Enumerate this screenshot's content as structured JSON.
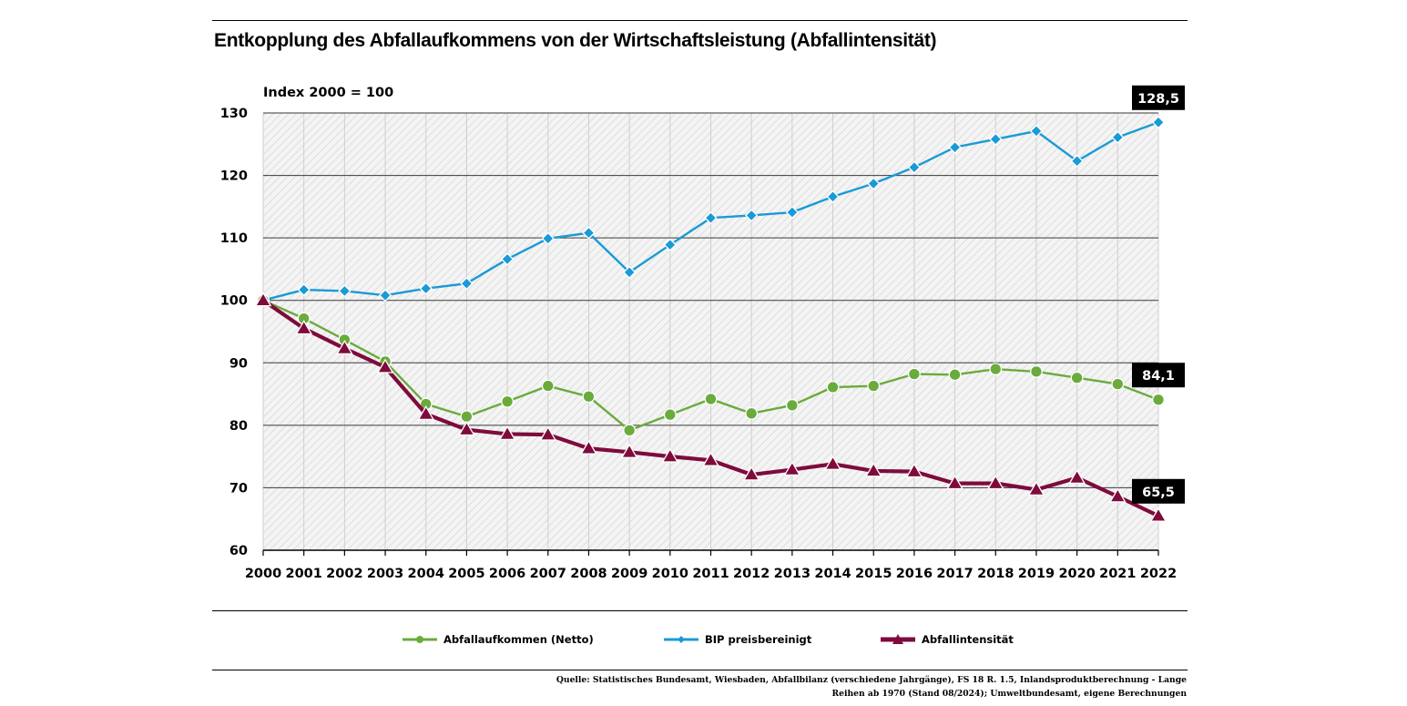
{
  "title": "Entkopplung des Abfallaufkommens von der Wirtschaftsleistung (Abfallintensität)",
  "source": {
    "line1": "Quelle: Statistisches Bundesamt, Wiesbaden, Abfallbilanz (verschiedene Jahrgänge), FS 18 R. 1.5, Inlandsproduktberechnung - Lange",
    "line2": "Reihen ab 1970 (Stand 08/2024); Umweltbundesamt, eigene Berechnungen"
  },
  "chart_data": {
    "type": "line",
    "ylabel": "Index 2000 = 100",
    "ylim": [
      60,
      130
    ],
    "yticks": [
      60,
      70,
      80,
      90,
      100,
      110,
      120,
      130
    ],
    "grid": true,
    "legend_position": "bottom",
    "x": [
      "2000",
      "2001",
      "2002",
      "2003",
      "2004",
      "2005",
      "2006",
      "2007",
      "2008",
      "2009",
      "2010",
      "2011",
      "2012",
      "2013",
      "2014",
      "2015",
      "2016",
      "2017",
      "2018",
      "2019",
      "2020",
      "2021",
      "2022"
    ],
    "series": [
      {
        "name": "Abfallaufkommen  (Netto)",
        "color": "#6aab3c",
        "marker": "circle",
        "values": [
          100,
          97.1,
          93.7,
          90.2,
          83.4,
          81.4,
          83.8,
          86.3,
          84.6,
          79.2,
          81.7,
          84.2,
          81.9,
          83.2,
          86.1,
          86.3,
          88.2,
          88.1,
          89.0,
          88.6,
          87.6,
          86.6,
          84.1
        ]
      },
      {
        "name": "BIP preisbereinigt",
        "color": "#1a9ad6",
        "marker": "diamond",
        "values": [
          100,
          101.7,
          101.5,
          100.8,
          101.9,
          102.7,
          106.6,
          109.9,
          110.8,
          104.5,
          108.9,
          113.2,
          113.6,
          114.1,
          116.6,
          118.7,
          121.3,
          124.5,
          125.8,
          127.1,
          122.3,
          126.1,
          128.5
        ]
      },
      {
        "name": "Abfallintensität",
        "color": "#7e0b3c",
        "marker": "triangle",
        "values": [
          100,
          95.5,
          92.3,
          89.3,
          81.8,
          79.3,
          78.6,
          78.5,
          76.3,
          75.7,
          75.0,
          74.4,
          72.1,
          72.9,
          73.8,
          72.7,
          72.6,
          70.7,
          70.7,
          69.7,
          71.6,
          68.6,
          65.5
        ]
      }
    ],
    "end_labels": [
      "84,1",
      "128,5",
      "65,5"
    ]
  }
}
